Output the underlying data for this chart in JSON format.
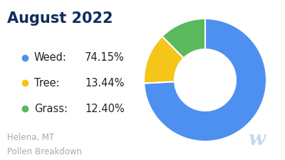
{
  "title": "August 2022",
  "subtitle1": "Helena, MT",
  "subtitle2": "Pollen Breakdown",
  "labels": [
    "Weed",
    "Tree",
    "Grass"
  ],
  "values": [
    74.15,
    13.44,
    12.4
  ],
  "display_pcts": [
    "74.15%",
    "13.44%",
    "12.40%"
  ],
  "colors": [
    "#4D90F0",
    "#F5C518",
    "#5CB85C"
  ],
  "background_color": "#ffffff",
  "title_color": "#0d2d5e",
  "legend_label_color": "#222222",
  "subtitle_color": "#aaaaaa",
  "watermark_color": "#c8d8f0",
  "title_fontsize": 15,
  "legend_fontsize": 10.5,
  "subtitle_fontsize": 8.5,
  "start_angle": 90,
  "donut_width": 0.5
}
